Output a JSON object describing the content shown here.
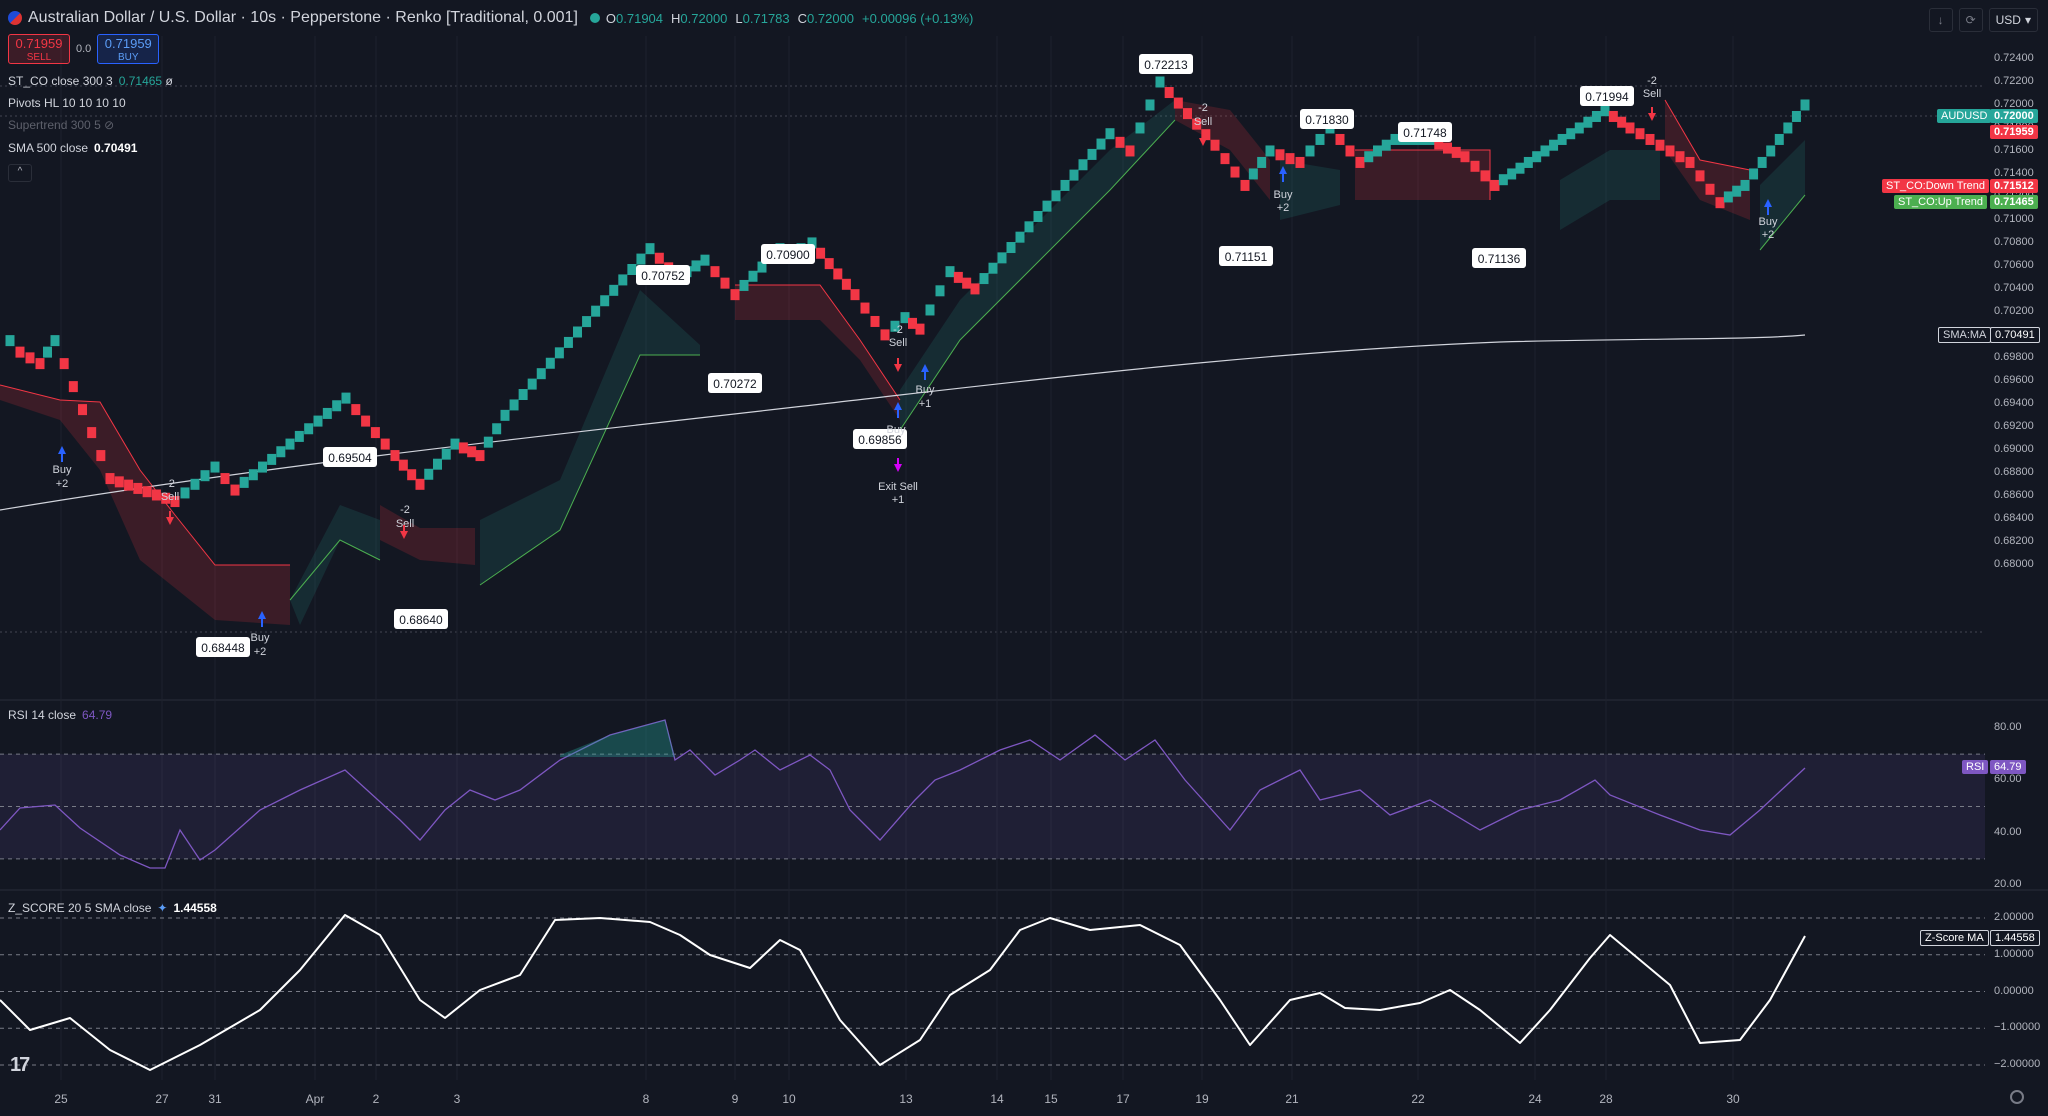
{
  "header": {
    "title": "Australian Dollar / U.S. Dollar · 10s · Pepperstone · Renko [Traditional, 0.001]",
    "ohlc": {
      "o_label": "O",
      "o": "0.71904",
      "h_label": "H",
      "h": "0.72000",
      "l_label": "L",
      "l": "0.71783",
      "c_label": "C",
      "c": "0.72000",
      "change": "+0.00096 (+0.13%)"
    },
    "currency": "USD"
  },
  "trade": {
    "sell_price": "0.71959",
    "sell_label": "SELL",
    "spread": "0.0",
    "buy_price": "0.71959",
    "buy_label": "BUY"
  },
  "legends": {
    "st_co": "ST_CO close 300 3",
    "st_co_value": "0.71465",
    "pivots": "Pivots HL 10 10 10 10",
    "supertrend": "Supertrend 300 5",
    "sma": "SMA 500 close",
    "sma_value": "0.70491",
    "rsi": "RSI 14 close",
    "rsi_value": "64.79",
    "zscore": "Z_SCORE 20 5 SMA close",
    "zscore_value": "1.44558"
  },
  "price_axis": [
    "0.72400",
    "0.72200",
    "0.72000",
    "0.71800",
    "0.71600",
    "0.71400",
    "0.71200",
    "0.71000",
    "0.70800",
    "0.70600",
    "0.70400",
    "0.70200",
    "0.70000",
    "0.69800",
    "0.69600",
    "0.69400",
    "0.69200",
    "0.69000",
    "0.68800",
    "0.68600",
    "0.68400",
    "0.68200",
    "0.68000"
  ],
  "rsi_axis": [
    "80.00",
    "60.00",
    "40.00",
    "20.00"
  ],
  "z_axis": [
    "2.00000",
    "1.00000",
    "0.00000",
    "−1.00000",
    "−2.00000"
  ],
  "badges": {
    "audusd_label": "AUDUSD",
    "audusd_value": "0.72000",
    "bid_value": "0.71959",
    "down_label": "ST_CO:Down Trend",
    "down_value": "0.71512",
    "up_label": "ST_CO:Up Trend",
    "up_value": "0.71465",
    "sma_label": "SMA:MA",
    "sma_value": "0.70491",
    "rsi_label": "RSI",
    "rsi_value": "64.79",
    "z_label": "Z-Score MA",
    "z_value": "1.44558"
  },
  "pivot_labels": [
    "0.68448",
    "0.69504",
    "0.68640",
    "0.70752",
    "0.70272",
    "0.70900",
    "0.69856",
    "0.72213",
    "0.71151",
    "0.71830",
    "0.71748",
    "0.71136",
    "0.71994"
  ],
  "signals": [
    "Buy",
    "+2",
    "-2",
    "Sell",
    "Buy",
    "+2",
    "-2",
    "Sell",
    "-2",
    "Sell",
    "Buy",
    "+1",
    "Buy",
    "Exit Sell",
    "+1",
    "-2",
    "Sell",
    "Buy",
    "+2",
    "-2",
    "Sell",
    "Buy",
    "+2"
  ],
  "x_axis": [
    "25",
    "27",
    "31",
    "Apr",
    "2",
    "3",
    "8",
    "9",
    "10",
    "13",
    "14",
    "15",
    "17",
    "19",
    "21",
    "22",
    "24",
    "28",
    "30"
  ],
  "colors": {
    "up": "#26a69a",
    "down": "#f23645",
    "background": "#131722",
    "rsi": "#7e57c2",
    "sma": "#d1d4dc"
  },
  "chart_data": {
    "type": "renko",
    "symbol": "AUDUSD",
    "box_size": 0.001,
    "ylim": [
      0.68,
      0.724
    ],
    "pivots": [
      0.68448,
      0.69504,
      0.6864,
      0.70752,
      0.70272,
      0.709,
      0.69856,
      0.72213,
      0.71151,
      0.7183,
      0.71748,
      0.71136,
      0.71994
    ],
    "last": 0.72,
    "sma_500": 0.70491,
    "st_co_down": 0.71512,
    "st_co_up": 0.71465,
    "rsi": {
      "ylim": [
        20,
        80
      ],
      "last": 64.79
    },
    "zscore": {
      "ylim": [
        -2,
        2
      ],
      "last": 1.44558
    }
  }
}
